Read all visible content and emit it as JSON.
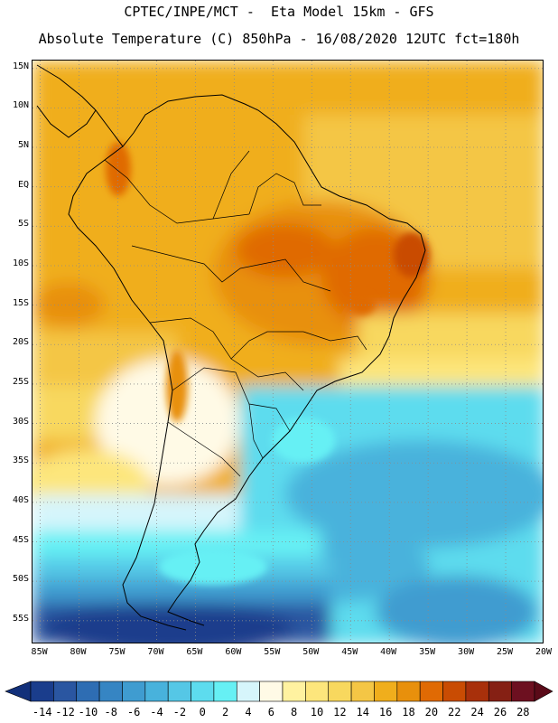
{
  "title": {
    "line1": "CPTEC/INPE/MCT -  Eta Model 15km - GFS",
    "line2": "Absolute Temperature (C) 850hPa - 16/08/2020 12UTC fct=180h"
  },
  "map": {
    "lat_labels": [
      "15N",
      "10N",
      "5N",
      "EQ",
      "5S",
      "10S",
      "15S",
      "20S",
      "25S",
      "30S",
      "35S",
      "40S",
      "45S",
      "50S",
      "55S"
    ],
    "lon_labels": [
      "85W",
      "80W",
      "75W",
      "70W",
      "65W",
      "60W",
      "55W",
      "50W",
      "45W",
      "40W",
      "35W",
      "30W",
      "25W",
      "20W"
    ],
    "lat_range": [
      16,
      -58
    ],
    "lon_range": [
      -86,
      -20
    ],
    "grid": "dotted"
  },
  "colorbar": {
    "labels": [
      "-14",
      "-12",
      "-10",
      "-8",
      "-6",
      "-4",
      "-2",
      "0",
      "2",
      "4",
      "6",
      "8",
      "10",
      "12",
      "14",
      "16",
      "18",
      "20",
      "22",
      "24",
      "26",
      "28"
    ],
    "colors": [
      "#1a3d8c",
      "#2a56a1",
      "#2e6db3",
      "#3685c3",
      "#3f9cd0",
      "#48b2dc",
      "#55c7e6",
      "#5ddcee",
      "#66f0f4",
      "#d6f5fb",
      "#fffae6",
      "#fff2a0",
      "#fde67c",
      "#f8d85e",
      "#f4c645",
      "#f0ae1c",
      "#e8900c",
      "#e06a04",
      "#c94c03",
      "#a8300b",
      "#852014",
      "#6d1020"
    ],
    "under_color": "#12307a",
    "over_color": "#5a0a18",
    "unit": "C"
  }
}
